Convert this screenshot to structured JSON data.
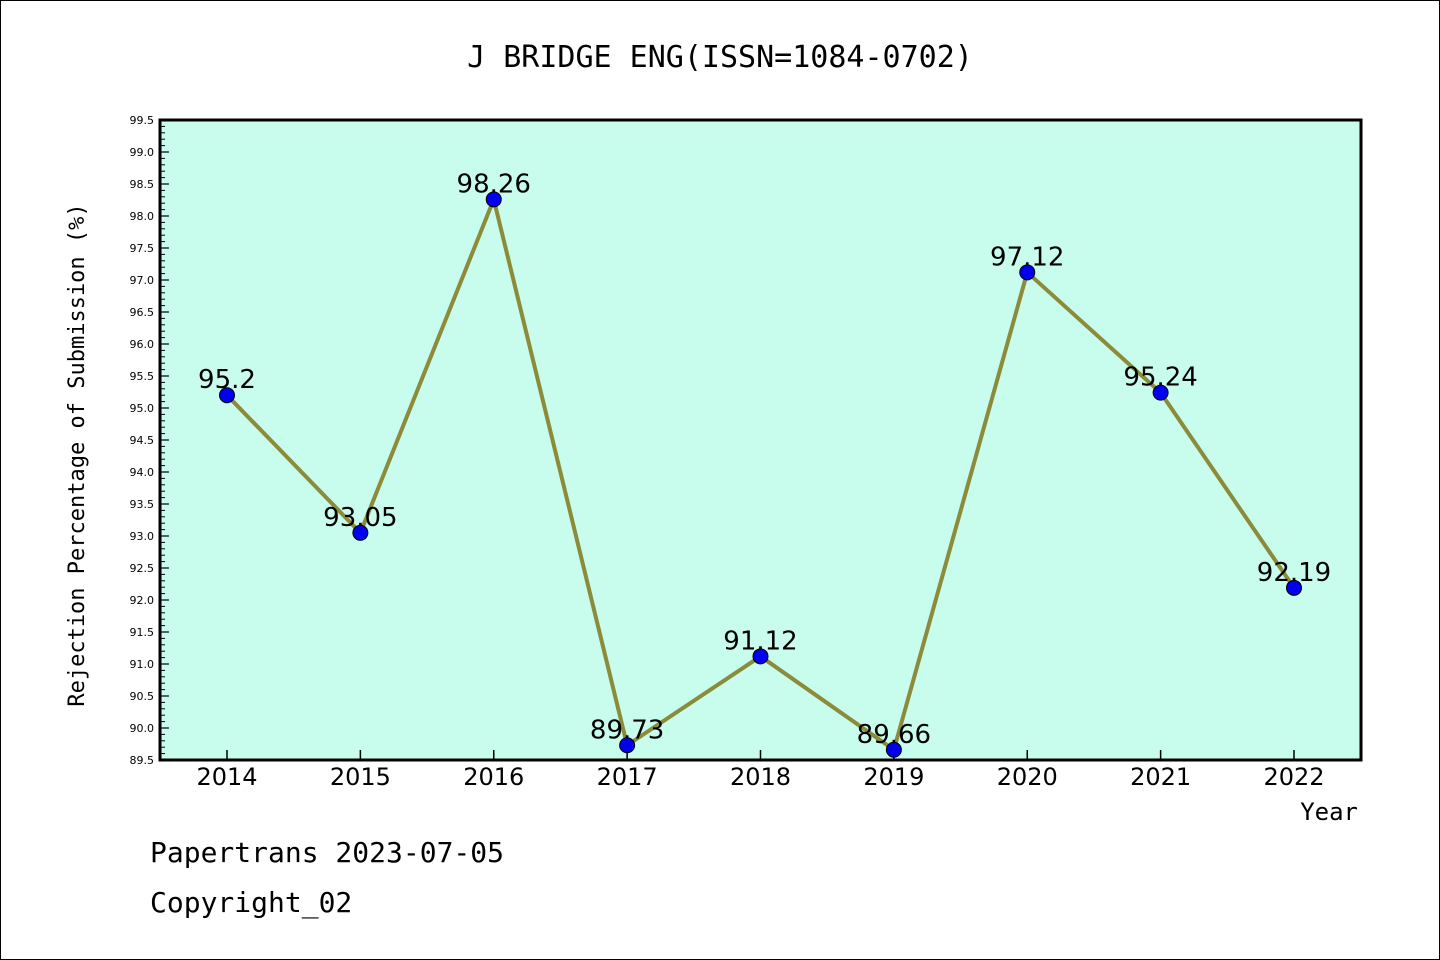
{
  "chart_data": {
    "type": "line",
    "title": "J BRIDGE ENG(ISSN=1084-0702)",
    "xlabel": "Year",
    "ylabel": "Rejection Percentage of Submission (%)",
    "categories": [
      "2014",
      "2015",
      "2016",
      "2017",
      "2018",
      "2019",
      "2020",
      "2021",
      "2022"
    ],
    "series": [
      {
        "values": [
          95.2,
          93.05,
          98.26,
          89.73,
          91.12,
          89.66,
          97.12,
          95.24,
          92.19
        ],
        "labels": [
          "95.2",
          "93.05",
          "98.26",
          "89.73",
          "91.12",
          "89.66",
          "97.12",
          "95.24",
          "92.19"
        ]
      }
    ],
    "ylim": [
      89.5,
      99.5
    ],
    "yticks": [
      "89.5",
      "90.0",
      "90.5",
      "91.0",
      "91.5",
      "92.0",
      "92.5",
      "93.0",
      "93.5",
      "94.0",
      "94.5",
      "95.0",
      "95.5",
      "96.0",
      "96.5",
      "97.0",
      "97.5",
      "98.0",
      "98.5",
      "99.0",
      "99.5"
    ],
    "grid": false,
    "plot_background": "#c8fcec",
    "line_color": "#8b8b3a",
    "marker_color": "#0000ee"
  },
  "footer": {
    "line1": "Papertrans 2023-07-05",
    "line2": "Copyright_02"
  }
}
